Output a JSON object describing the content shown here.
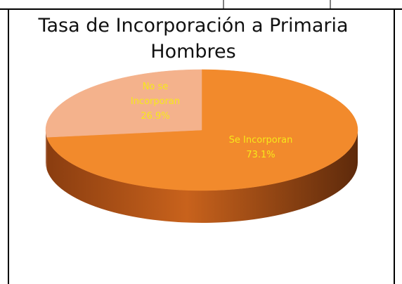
{
  "chart_data": {
    "type": "pie",
    "title": [
      "Tasa de Incorporación a Primaria",
      "Hombres"
    ],
    "categories": [
      "Se Incorporan",
      "No se Incorporan"
    ],
    "values": [
      73.1,
      26.9
    ],
    "value_labels": [
      "73.1%",
      "26.9%"
    ],
    "colors": [
      "#f28a2c",
      "#f4b28c"
    ],
    "label_color": "#f7e81a"
  }
}
